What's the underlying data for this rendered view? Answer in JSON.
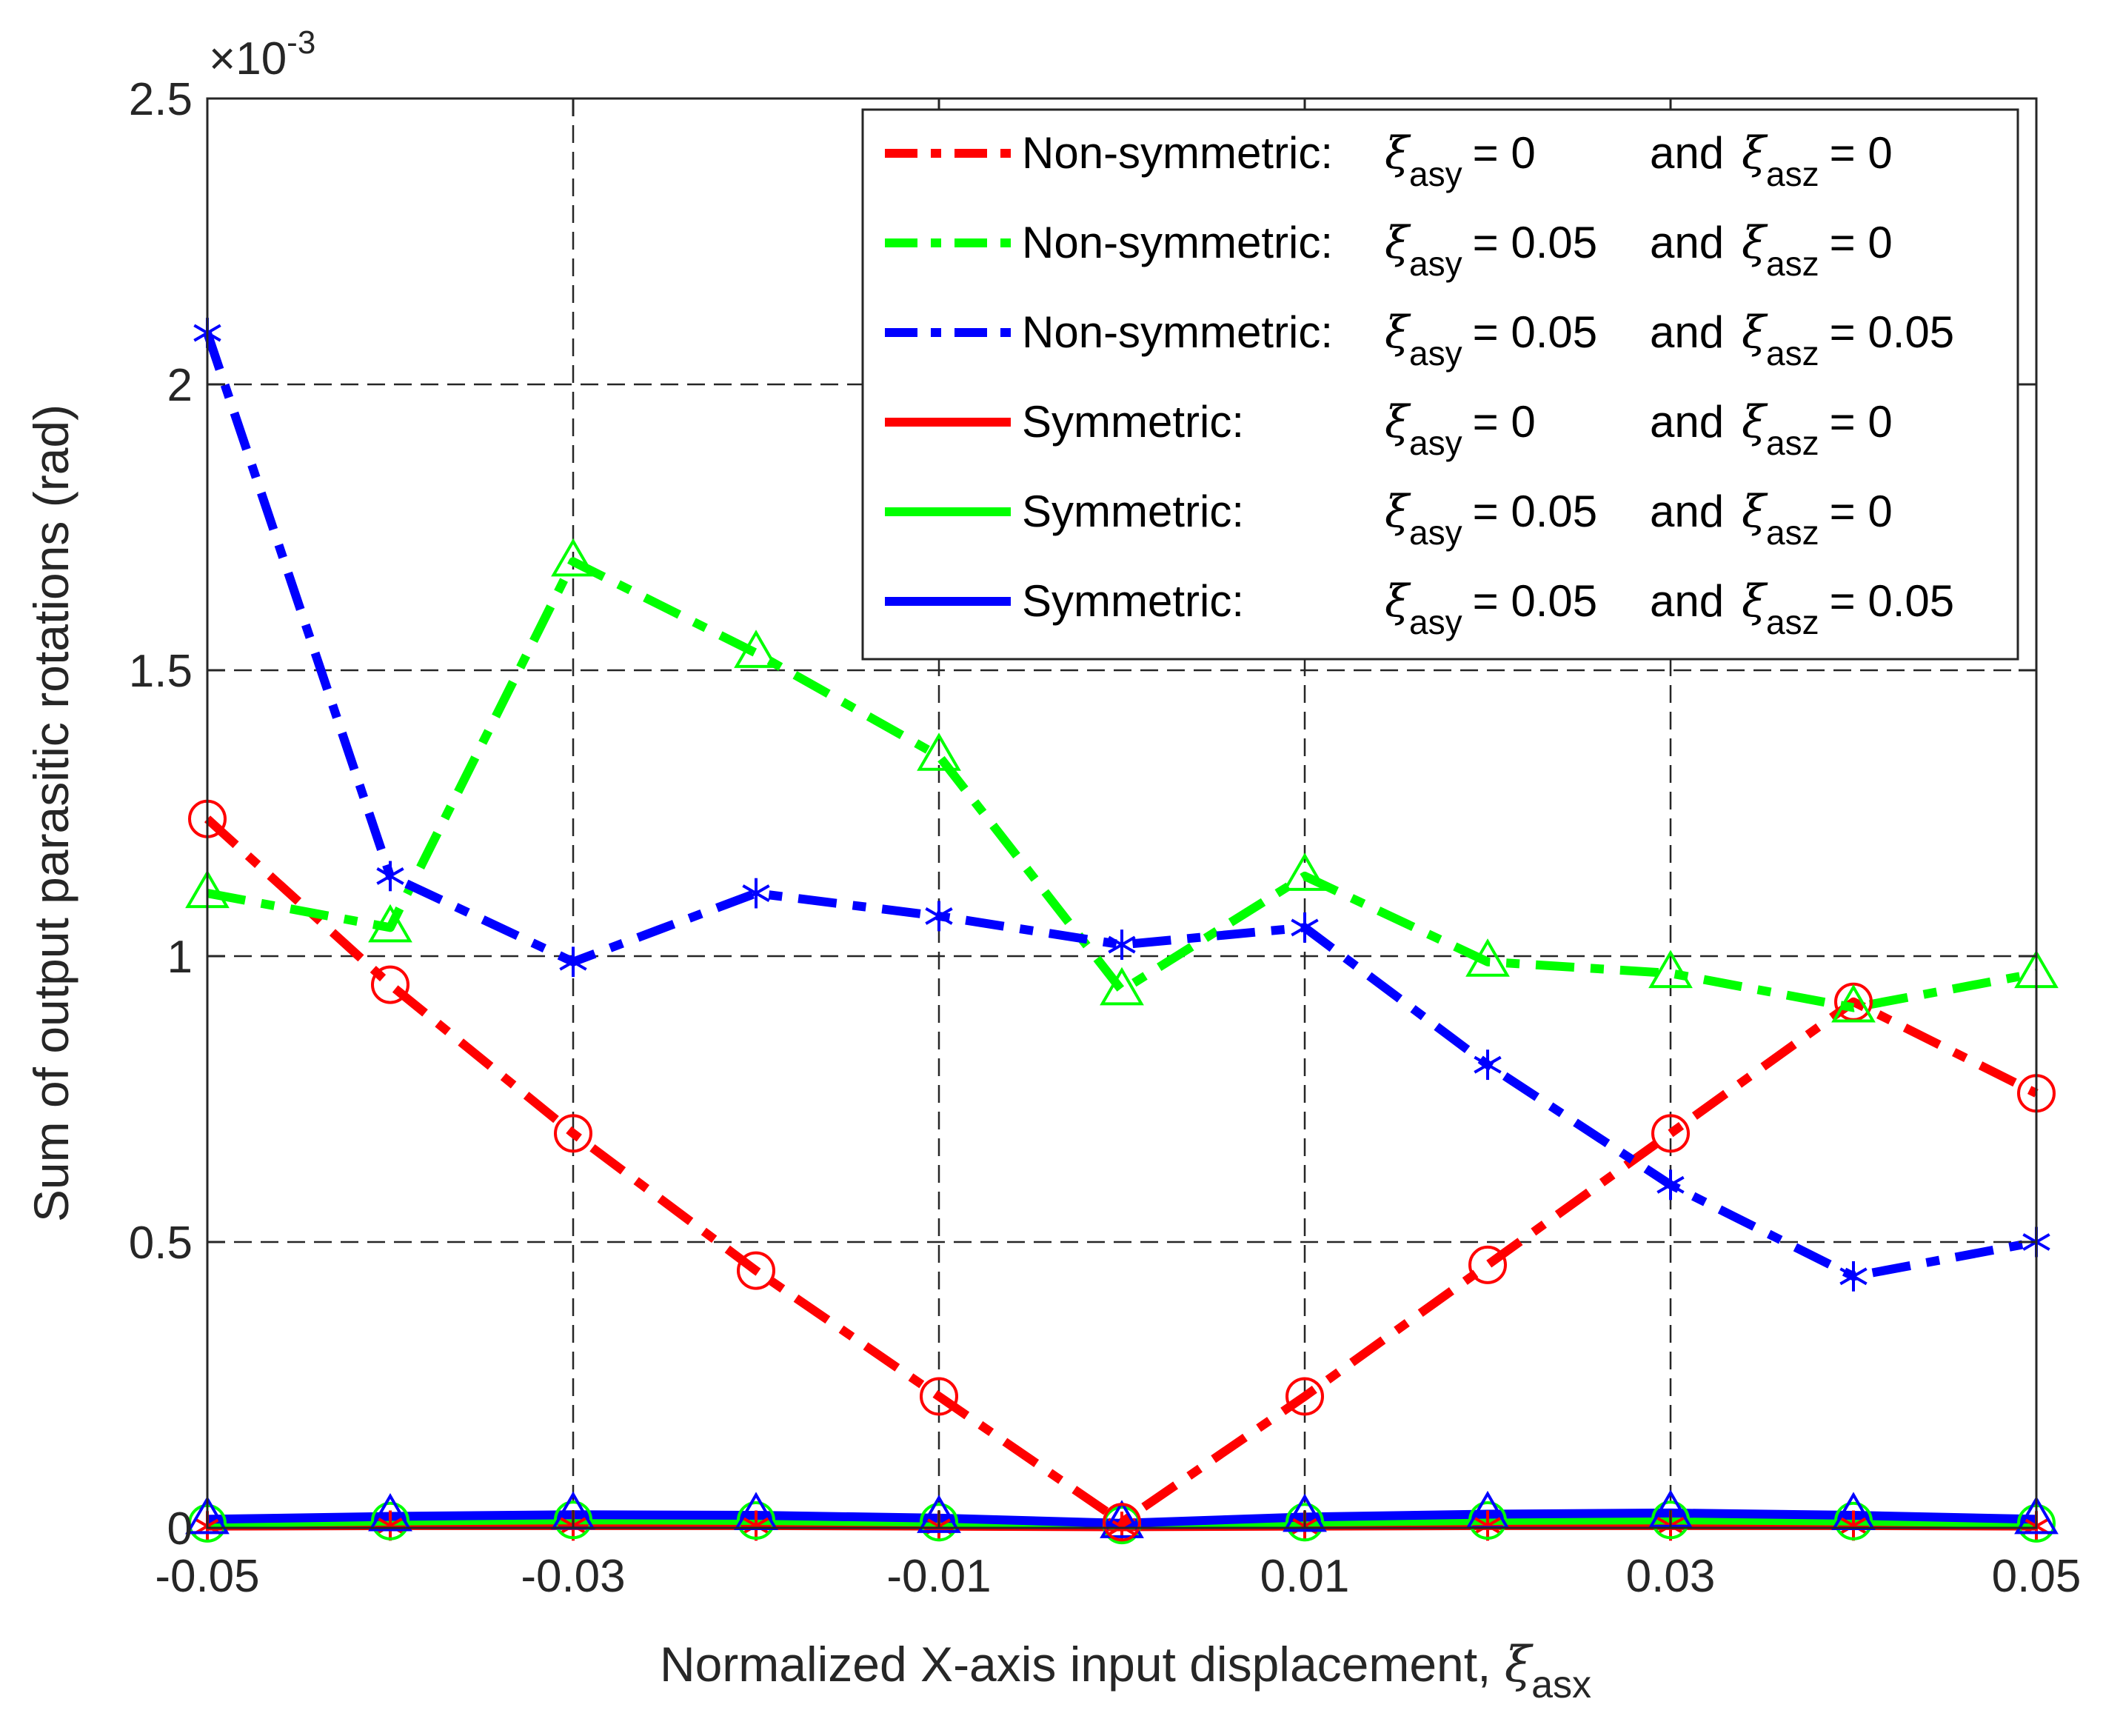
{
  "chart_data": {
    "type": "line",
    "title": "",
    "xlabel": "Normalized X-axis input displacement, ",
    "xlabel_symbol": "ξ",
    "xlabel_subscript": "asx",
    "ylabel": "Sum of output parasitic rotations (rad)",
    "y_exponent_prefix": "×10",
    "y_exponent_power": "-3",
    "xlim": [
      -0.05,
      0.05
    ],
    "ylim": [
      0,
      2.5
    ],
    "x_tick_values": [
      -0.05,
      -0.03,
      -0.01,
      0.01,
      0.03,
      0.05
    ],
    "x_tick_labels": [
      "-0.05",
      "-0.03",
      "-0.01",
      "0.01",
      "0.03",
      "0.05"
    ],
    "x_grid_values": [
      -0.03,
      -0.01,
      0.01,
      0.03
    ],
    "y_tick_values": [
      0,
      0.5,
      1,
      1.5,
      2,
      2.5
    ],
    "y_tick_labels": [
      "0",
      "0.5",
      "1",
      "1.5",
      "2",
      "2.5"
    ],
    "grid": true,
    "legend_position": "top-right",
    "x": [
      -0.05,
      -0.04,
      -0.03,
      -0.02,
      -0.01,
      0,
      0.01,
      0.02,
      0.03,
      0.04,
      0.05
    ],
    "series": [
      {
        "name": "Non-symmetric: ξasy = 0 and ξasz = 0",
        "legend_prefix": "Non-symmetric:",
        "legend_y": "= 0",
        "legend_z": "= 0",
        "color": "#ff0000",
        "style": "dashdot",
        "marker": "circle",
        "values": [
          1.24,
          0.95,
          0.69,
          0.45,
          0.23,
          0.01,
          0.23,
          0.46,
          0.69,
          0.92,
          0.76
        ]
      },
      {
        "name": "Non-symmetric: ξasy = 0.05 and ξasz = 0",
        "legend_prefix": "Non-symmetric:",
        "legend_y": "= 0.05",
        "legend_z": "= 0",
        "color": "#00ff00",
        "style": "dashdot",
        "marker": "triangle",
        "values": [
          1.11,
          1.05,
          1.69,
          1.53,
          1.35,
          0.94,
          1.14,
          0.99,
          0.97,
          0.91,
          0.97
        ]
      },
      {
        "name": "Non-symmetric: ξasy = 0.05 and ξasz = 0.05",
        "legend_prefix": "Non-symmetric:",
        "legend_y": "= 0.05",
        "legend_z": "= 0.05",
        "color": "#0000ff",
        "style": "dashdot",
        "marker": "asterisk",
        "values": [
          2.09,
          1.14,
          0.99,
          1.11,
          1.07,
          1.02,
          1.05,
          0.81,
          0.6,
          0.44,
          0.5
        ]
      },
      {
        "name": "Symmetric: ξasy = 0 and ξasz = 0",
        "legend_prefix": "Symmetric:",
        "legend_y": "= 0",
        "legend_z": "= 0",
        "color": "#ff0000",
        "style": "solid",
        "marker": "asterisk",
        "values": [
          0.003,
          0.004,
          0.004,
          0.004,
          0.003,
          0.002,
          0.003,
          0.004,
          0.004,
          0.004,
          0.003
        ]
      },
      {
        "name": "Symmetric: ξasy = 0.05 and ξasz = 0",
        "legend_prefix": "Symmetric:",
        "legend_y": "= 0.05",
        "legend_z": "= 0",
        "color": "#00ff00",
        "style": "solid",
        "marker": "circle",
        "values": [
          0.008,
          0.012,
          0.014,
          0.013,
          0.01,
          0.005,
          0.01,
          0.013,
          0.014,
          0.012,
          0.008
        ]
      },
      {
        "name": "Symmetric: ξasy = 0.05 and ξasz = 0.05",
        "legend_prefix": "Symmetric:",
        "legend_y": "= 0.05",
        "legend_z": "= 0.05",
        "color": "#0000ff",
        "style": "solid",
        "marker": "triangle",
        "values": [
          0.015,
          0.02,
          0.023,
          0.022,
          0.017,
          0.008,
          0.019,
          0.024,
          0.026,
          0.022,
          0.015
        ]
      }
    ],
    "legend_symbol": "ξ",
    "legend_sub_y": "asy",
    "legend_sub_z": "asz",
    "legend_and": "and"
  }
}
